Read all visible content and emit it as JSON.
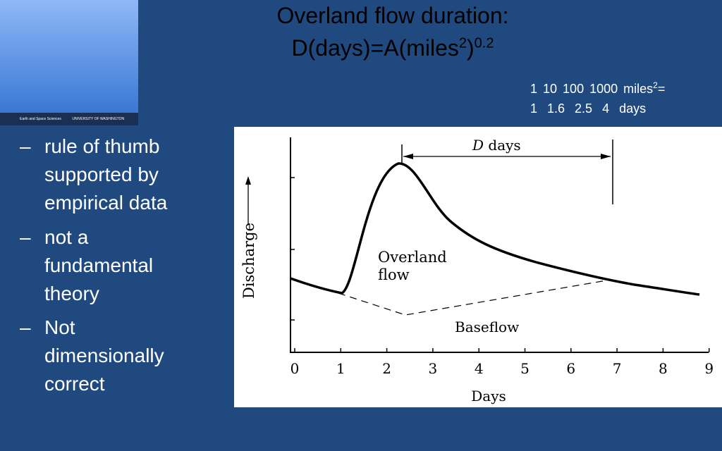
{
  "logo": {
    "left": "Earth and Space Sciences",
    "right": "UNIVERSITY OF WASHINGTON"
  },
  "title": {
    "line1": "Overland flow duration:",
    "line2": "D(days)=A(miles",
    "sup1": "2",
    "close": ")",
    "sup2": "0.2"
  },
  "table": {
    "area_row": {
      "values": [
        "1",
        "10",
        "100",
        "1000"
      ],
      "unit": "miles",
      "unit_sup": "2",
      "suffix": "="
    },
    "days_row": {
      "values": [
        "1",
        "1.6",
        "2.5",
        "4"
      ],
      "unit": "days"
    }
  },
  "bullets": [
    "rule of thumb supported by empirical data",
    "not a fundamental theory",
    "Not dimensionally correct"
  ],
  "figure": {
    "d_symbol": "D",
    "d_unit": "days",
    "overland": [
      "Overland",
      "flow"
    ],
    "baseflow": "Baseflow",
    "y_label": "Discharge",
    "x_label": "Days",
    "x_ticks": [
      "0",
      "1",
      "2",
      "3",
      "4",
      "5",
      "6",
      "7",
      "8",
      "9"
    ]
  }
}
